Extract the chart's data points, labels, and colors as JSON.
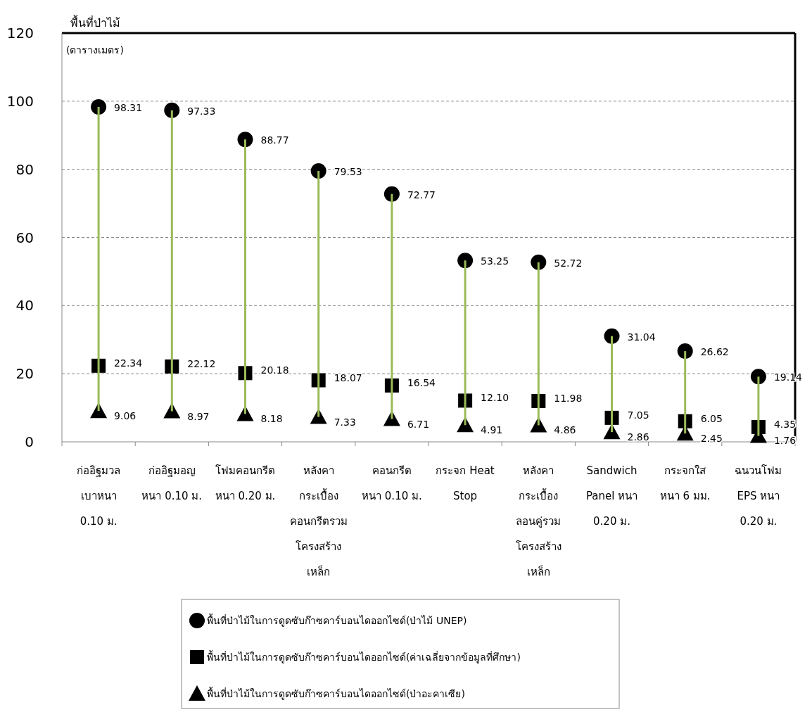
{
  "chart_data": {
    "type": "scatter",
    "ylabel": "พื้นที่ป่าไม้\n(ตารางเมตร)",
    "categories": [
      "ก่ออิฐมวล\nเบาหนา\n0.10 ม.",
      "ก่ออิฐมอญ\nหนา 0.10 ม.",
      "โฟมคอนกรีต\nหนา 0.20 ม.",
      "หลังคา\nกระเบื้อง\nคอนกรีตรวม\nโครงสร้าง\nเหล็ก",
      "คอนกรีต\nหนา 0.10 ม.",
      "กระจก Heat\nStop",
      "หลังคา\nกระเบื้อง\nลอนคู่รวม\nโครงสร้าง\nเหล็ก",
      "Sandwich\nPanel หนา\n0.20 ม.",
      "กระจกใส\nหนา 6 มม.",
      "ฉนวนโฟม\nEPS หนา\n0.20 ม."
    ],
    "ylim": [
      0,
      120
    ],
    "yticks": [
      0,
      20,
      40,
      60,
      80,
      100,
      120
    ],
    "grid": "y",
    "legend": "bottom",
    "series": [
      {
        "type": "bar",
        "color": "#9bbb59",
        "base": [
          9.06,
          8.97,
          8.18,
          7.33,
          6.71,
          4.91,
          4.86,
          2.86,
          2.45,
          1.76
        ],
        "values": [
          89.25,
          88.36,
          80.59,
          72.2,
          66.06,
          48.34,
          47.86,
          28.18,
          24.17,
          17.38
        ]
      },
      {
        "name": "พื้นที่ป่าไม้ในการดูดซับก๊าซคาร์บอนไดออกไซด์(ป่าไม้ UNEP)",
        "color": "#000000",
        "marker": "circle",
        "values": [
          98.31,
          97.33,
          88.77,
          79.53,
          72.77,
          53.25,
          52.72,
          31.04,
          26.62,
          19.14
        ],
        "value_labels": [
          "98.31",
          "97.33",
          "88.77",
          "79.53",
          "72.77",
          "53.25",
          "52.72",
          "31.04",
          "26.62",
          "19.14"
        ]
      },
      {
        "name": "พื้นที่ป่าไม้ในการดูดซับก๊าซคาร์บอนไดออกไซด์(ค่าเฉลี่ยจากข้อมูลที่ศึกษา)",
        "color": "#000000",
        "marker": "square",
        "values": [
          22.34,
          22.12,
          20.18,
          18.07,
          16.54,
          12.1,
          11.98,
          7.05,
          6.05,
          4.35
        ],
        "value_labels": [
          "22.34",
          "22.12",
          "20.18",
          "18.07",
          "16.54",
          "12.10",
          "11.98",
          "7.05",
          "6.05",
          "4.35"
        ]
      },
      {
        "name": "พื้นที่ป่าไม้ในการดูดซับก๊าซคาร์บอนไดออกไซด์(ป่าอะคาเซีย)",
        "color": "#000000",
        "marker": "triangle",
        "values": [
          9.06,
          8.97,
          8.18,
          7.33,
          6.71,
          4.91,
          4.86,
          2.86,
          2.45,
          1.76
        ],
        "value_labels": [
          "9.06",
          "8.97",
          "8.18",
          "7.33",
          "6.71",
          "4.91",
          "4.86",
          "2.86",
          "2.45",
          "1.76"
        ]
      }
    ]
  }
}
